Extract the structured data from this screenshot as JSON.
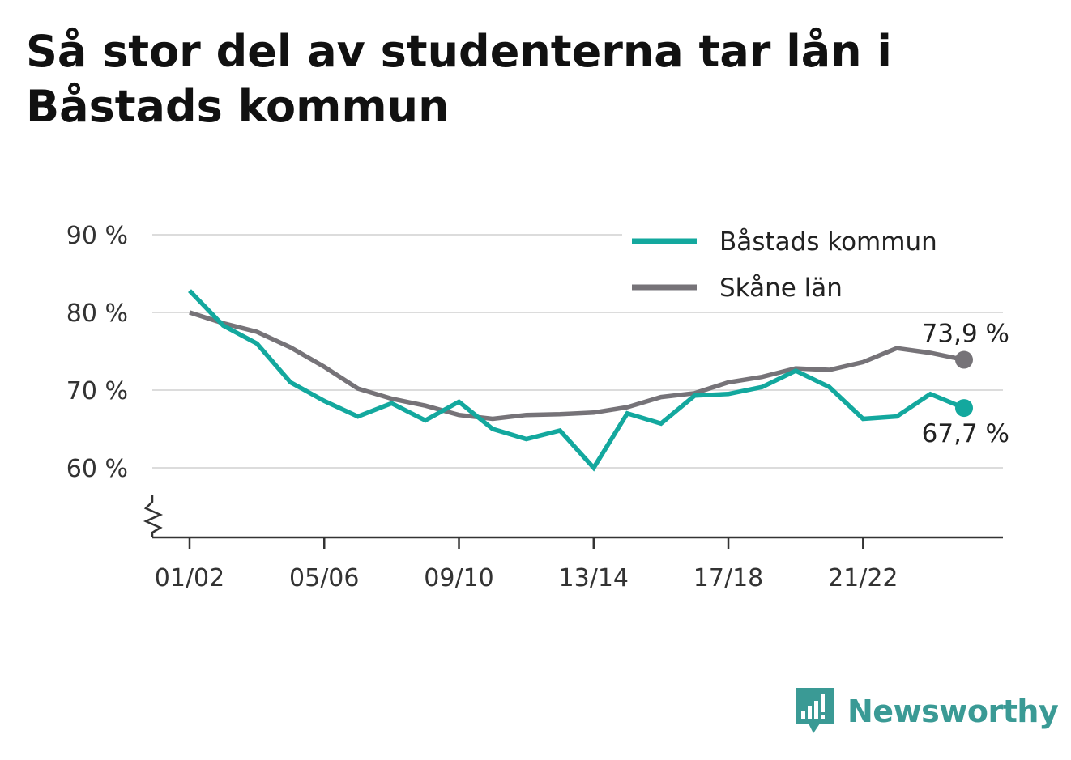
{
  "chart_data": {
    "type": "line",
    "title": "Så stor del av studenterna tar lån i Båstads kommun",
    "xlabel": "",
    "ylabel": "",
    "x": [
      "01/02",
      "02/03",
      "03/04",
      "04/05",
      "05/06",
      "06/07",
      "07/08",
      "08/09",
      "09/10",
      "10/11",
      "11/12",
      "12/13",
      "13/14",
      "14/15",
      "15/16",
      "16/17",
      "17/18",
      "18/19",
      "19/20",
      "20/21",
      "21/22",
      "22/23",
      "23/24",
      "24/25"
    ],
    "x_tick_labels": [
      "01/02",
      "05/06",
      "09/10",
      "13/14",
      "17/18",
      "21/22"
    ],
    "y_tick_labels": [
      "90 %",
      "80 %",
      "70 %",
      "60 %"
    ],
    "y_ticks": [
      90,
      80,
      70,
      60
    ],
    "ylim": [
      51,
      92
    ],
    "y_axis_break": true,
    "grid": "horizontal",
    "legend_position": "top-right",
    "series": [
      {
        "name": "Båstads kommun",
        "color": "#13a89e",
        "values": [
          82.8,
          78.3,
          76.0,
          71.0,
          68.6,
          66.6,
          68.3,
          66.1,
          68.5,
          65.0,
          63.7,
          64.8,
          60.0,
          67.0,
          65.7,
          69.3,
          69.5,
          70.4,
          72.5,
          70.4,
          66.3,
          66.6,
          69.5,
          67.7
        ],
        "end_label": "67,7 %"
      },
      {
        "name": "Skåne län",
        "color": "#767378",
        "values": [
          80.0,
          78.6,
          77.5,
          75.5,
          73.0,
          70.2,
          68.9,
          68.0,
          66.8,
          66.3,
          66.8,
          66.9,
          67.1,
          67.8,
          69.1,
          69.6,
          71.0,
          71.7,
          72.8,
          72.6,
          73.6,
          75.4,
          74.8,
          73.9
        ],
        "end_label": "73,9 %"
      }
    ]
  },
  "brand": {
    "name": "Newsworthy",
    "color": "#3a9a95",
    "icon": "bar-chart-speech-bubble-icon"
  }
}
